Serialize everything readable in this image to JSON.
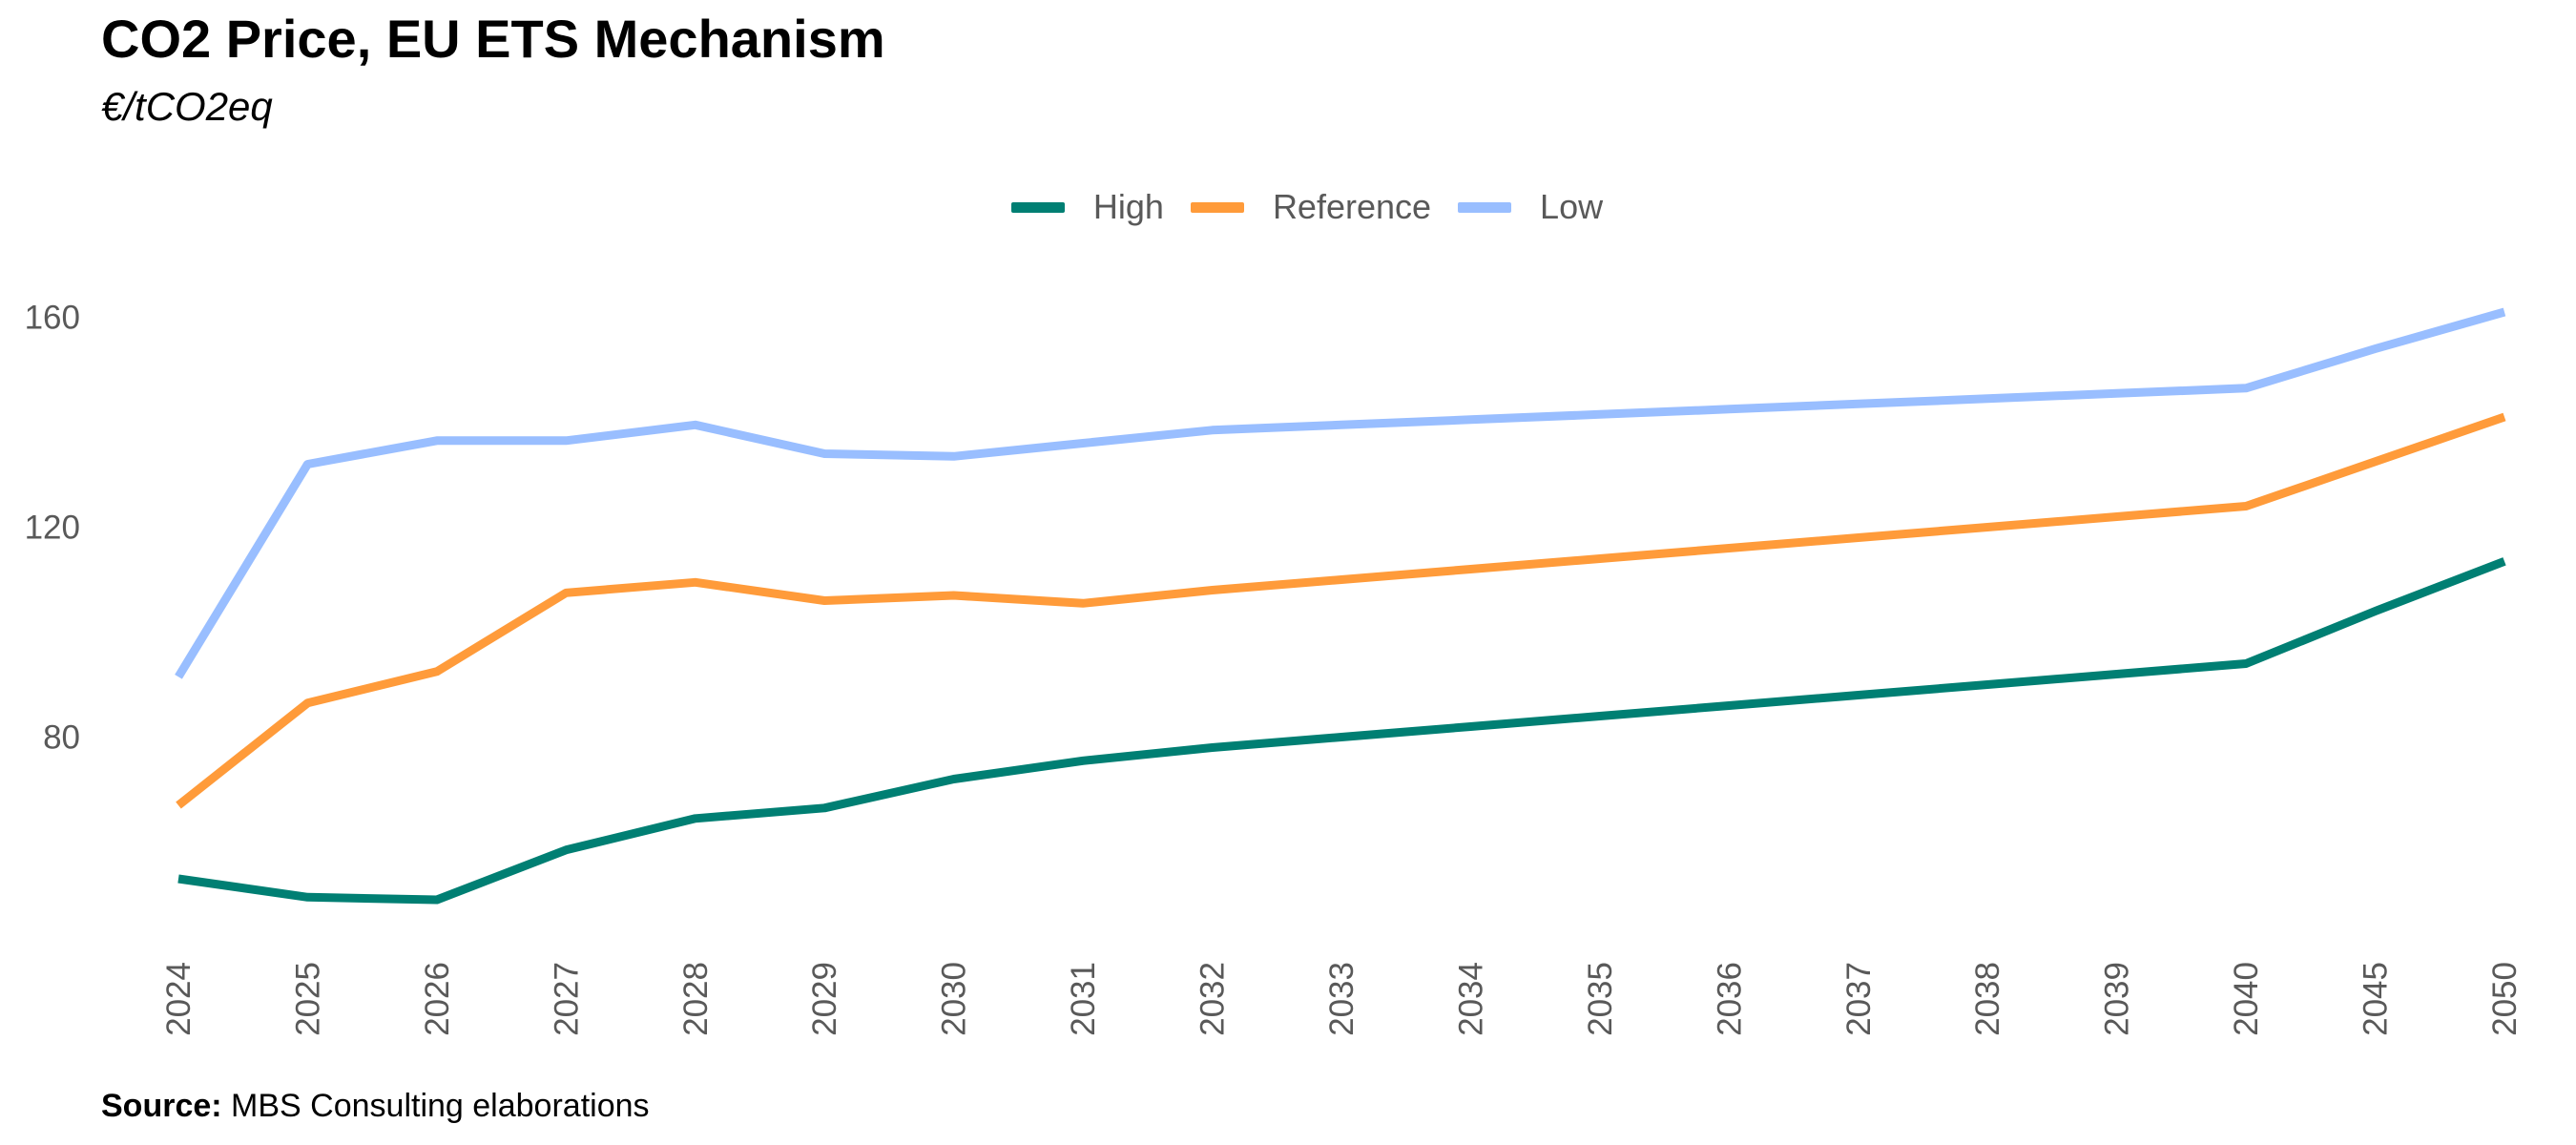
{
  "header": {
    "title": "CO2 Price, EU ETS Mechanism",
    "subtitle": "€/tCO2eq"
  },
  "footer": {
    "source_label": "Source:",
    "source_text": "MBS Consulting elaborations"
  },
  "chart_data": {
    "type": "line",
    "title": "CO2 Price, EU ETS Mechanism",
    "subtitle": "€/tCO2eq",
    "xlabel": "",
    "ylabel": "",
    "categories": [
      "2024",
      "2025",
      "2026",
      "2027",
      "2028",
      "2029",
      "2030",
      "2031",
      "2032",
      "2033",
      "2034",
      "2035",
      "2036",
      "2037",
      "2038",
      "2039",
      "2040",
      "2045",
      "2050"
    ],
    "ylim": [
      35,
      175
    ],
    "yticks": [
      80,
      120,
      160
    ],
    "grid": false,
    "legend_position": "top-center",
    "series": [
      {
        "name": "High",
        "color": "#007F73",
        "values": [
          53,
          49.5,
          49,
          58.5,
          64.5,
          66.5,
          72,
          75.5,
          78,
          80,
          82,
          84,
          86,
          88,
          90,
          92,
          94,
          104,
          113.5
        ]
      },
      {
        "name": "Reference",
        "color": "#FF9B3A",
        "values": [
          67,
          86.5,
          92.5,
          107.5,
          109.5,
          106,
          107,
          105.5,
          108,
          110,
          112,
          114,
          116,
          118,
          120,
          122,
          124,
          132.5,
          141
        ]
      },
      {
        "name": "Low",
        "color": "#99BEFF",
        "values": [
          91.5,
          132,
          136.5,
          136.5,
          139.5,
          134,
          133.5,
          136,
          138.5,
          139.5,
          140.5,
          141.5,
          142.5,
          143.5,
          144.5,
          145.5,
          146.5,
          154,
          161
        ]
      }
    ]
  }
}
